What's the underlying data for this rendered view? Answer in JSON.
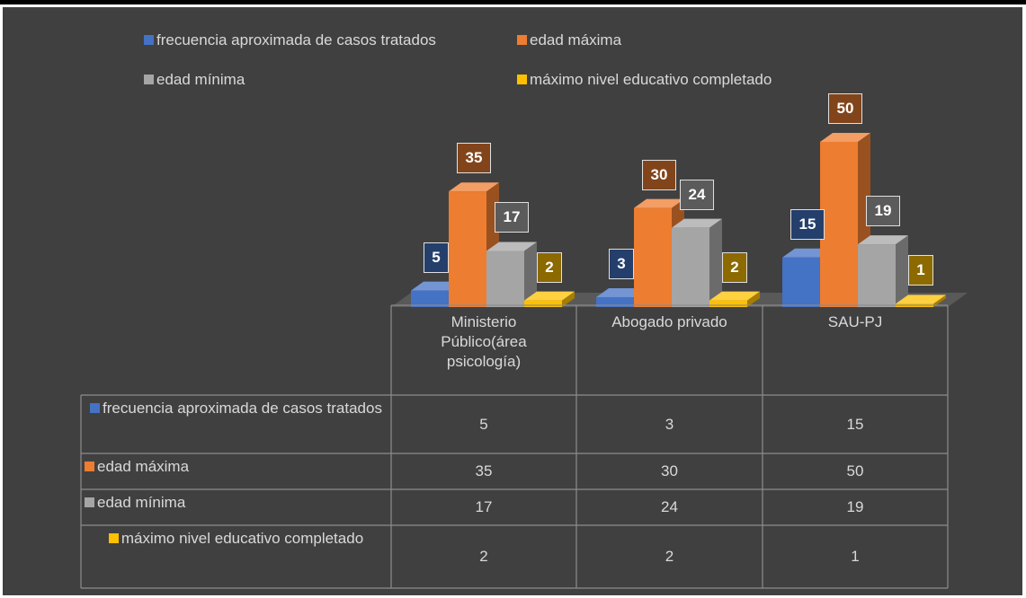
{
  "chart_data": {
    "type": "bar3d",
    "categories": [
      "Ministerio Público(área psicología)",
      "Abogado privado",
      "SAU-PJ"
    ],
    "series": [
      {
        "name": "frecuencia aproximada de casos tratados",
        "color": "#4472c4",
        "values": [
          5,
          3,
          15
        ]
      },
      {
        "name": "edad máxima",
        "color": "#ed7d31",
        "values": [
          35,
          30,
          50
        ]
      },
      {
        "name": "edad mínima",
        "color": "#a5a5a5",
        "values": [
          17,
          24,
          19
        ]
      },
      {
        "name": "máximo nivel educativo completado",
        "color": "#ffc000",
        "values": [
          2,
          2,
          1
        ]
      }
    ],
    "legend": "top",
    "data_table": true
  }
}
